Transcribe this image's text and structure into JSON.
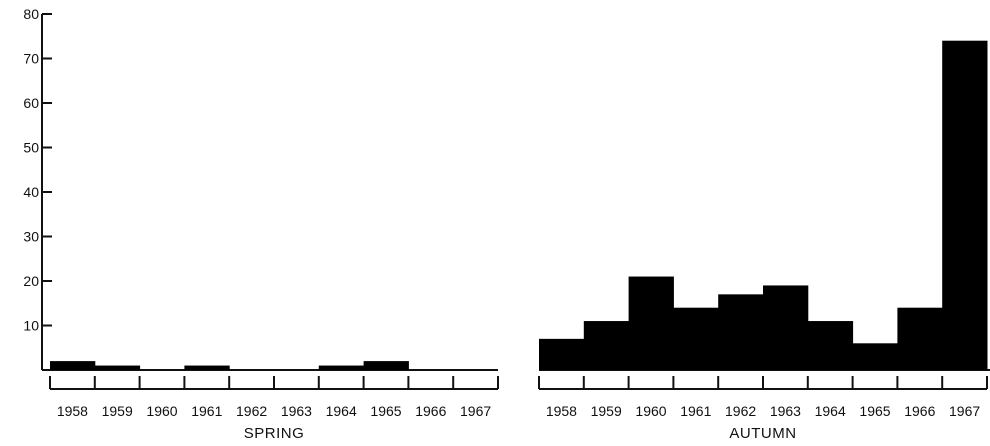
{
  "chart_data": [
    {
      "type": "bar",
      "title": "SPRING",
      "categories": [
        "1958",
        "1959",
        "1960",
        "1961",
        "1962",
        "1963",
        "1964",
        "1965",
        "1966",
        "1967"
      ],
      "values": [
        2,
        1,
        0,
        1,
        0,
        0,
        1,
        2,
        0,
        0
      ],
      "xlabel": "SPRING",
      "ylabel": "",
      "ylim": [
        0,
        80
      ],
      "yticks": [
        10,
        20,
        30,
        40,
        50,
        60,
        70,
        80
      ],
      "grid": false,
      "bar_color": "#000000"
    },
    {
      "type": "bar",
      "title": "AUTUMN",
      "categories": [
        "1958",
        "1959",
        "1960",
        "1961",
        "1962",
        "1963",
        "1964",
        "1965",
        "1966",
        "1967"
      ],
      "values": [
        7,
        11,
        21,
        14,
        17,
        19,
        11,
        6,
        14,
        74
      ],
      "xlabel": "AUTUMN",
      "ylabel": "",
      "ylim": [
        0,
        80
      ],
      "grid": false,
      "bar_color": "#000000"
    }
  ]
}
